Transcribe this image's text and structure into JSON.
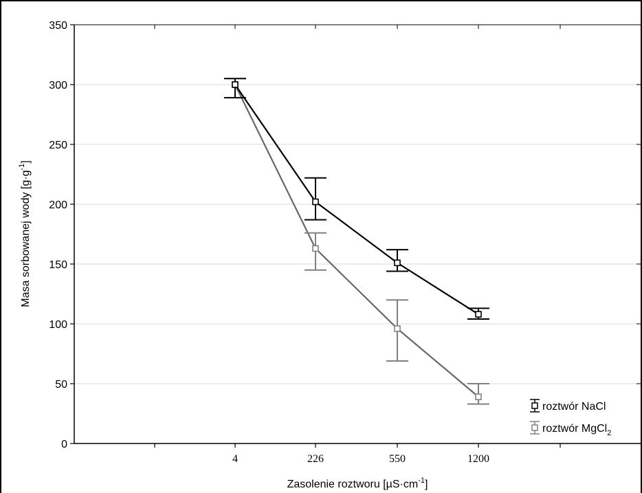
{
  "chart_data": {
    "type": "line",
    "xlabel": "Zasolenie roztworu [µS·cm",
    "xlabel_sup": "-1",
    "xlabel_suffix": "]",
    "ylabel": "Masa sorbowanej wody [g·g",
    "ylabel_sup": "-1",
    "ylabel_suffix": "]",
    "categories": [
      "4",
      "226",
      "550",
      "1200"
    ],
    "ylim": [
      0,
      350
    ],
    "yticks": [
      "0",
      "50",
      "100",
      "150",
      "200",
      "250",
      "300",
      "350"
    ],
    "grid": "horizontal",
    "legend_position": "bottom-right",
    "series": [
      {
        "name": "roztwór NaCl",
        "color": "#000000",
        "values": [
          300,
          202,
          151,
          108
        ],
        "err_low": [
          289,
          187,
          144,
          104
        ],
        "err_high": [
          305,
          222,
          162,
          113
        ]
      },
      {
        "name": "roztwór MgCl",
        "name_sub": "2",
        "color": "#666666",
        "err_color": "#808080",
        "values": [
          300,
          163,
          96,
          39
        ],
        "err_low": [
          300,
          145,
          69,
          33
        ],
        "err_high": [
          300,
          176,
          120,
          50
        ]
      }
    ]
  }
}
